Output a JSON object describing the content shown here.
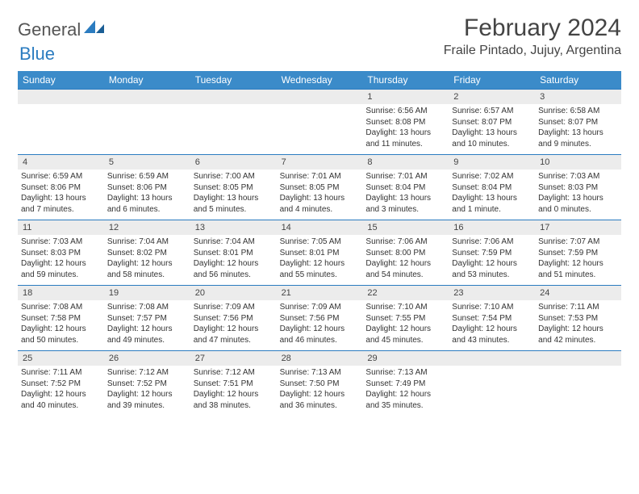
{
  "logo": {
    "part1": "General",
    "part2": "Blue"
  },
  "title": "February 2024",
  "location": "Fraile Pintado, Jujuy, Argentina",
  "header_bg": "#3b8bc9",
  "days_of_week": [
    "Sunday",
    "Monday",
    "Tuesday",
    "Wednesday",
    "Thursday",
    "Friday",
    "Saturday"
  ],
  "weeks": [
    {
      "nums": [
        "",
        "",
        "",
        "",
        "1",
        "2",
        "3"
      ],
      "details": [
        "",
        "",
        "",
        "",
        "Sunrise: 6:56 AM\nSunset: 8:08 PM\nDaylight: 13 hours and 11 minutes.",
        "Sunrise: 6:57 AM\nSunset: 8:07 PM\nDaylight: 13 hours and 10 minutes.",
        "Sunrise: 6:58 AM\nSunset: 8:07 PM\nDaylight: 13 hours and 9 minutes."
      ]
    },
    {
      "nums": [
        "4",
        "5",
        "6",
        "7",
        "8",
        "9",
        "10"
      ],
      "details": [
        "Sunrise: 6:59 AM\nSunset: 8:06 PM\nDaylight: 13 hours and 7 minutes.",
        "Sunrise: 6:59 AM\nSunset: 8:06 PM\nDaylight: 13 hours and 6 minutes.",
        "Sunrise: 7:00 AM\nSunset: 8:05 PM\nDaylight: 13 hours and 5 minutes.",
        "Sunrise: 7:01 AM\nSunset: 8:05 PM\nDaylight: 13 hours and 4 minutes.",
        "Sunrise: 7:01 AM\nSunset: 8:04 PM\nDaylight: 13 hours and 3 minutes.",
        "Sunrise: 7:02 AM\nSunset: 8:04 PM\nDaylight: 13 hours and 1 minute.",
        "Sunrise: 7:03 AM\nSunset: 8:03 PM\nDaylight: 13 hours and 0 minutes."
      ]
    },
    {
      "nums": [
        "11",
        "12",
        "13",
        "14",
        "15",
        "16",
        "17"
      ],
      "details": [
        "Sunrise: 7:03 AM\nSunset: 8:03 PM\nDaylight: 12 hours and 59 minutes.",
        "Sunrise: 7:04 AM\nSunset: 8:02 PM\nDaylight: 12 hours and 58 minutes.",
        "Sunrise: 7:04 AM\nSunset: 8:01 PM\nDaylight: 12 hours and 56 minutes.",
        "Sunrise: 7:05 AM\nSunset: 8:01 PM\nDaylight: 12 hours and 55 minutes.",
        "Sunrise: 7:06 AM\nSunset: 8:00 PM\nDaylight: 12 hours and 54 minutes.",
        "Sunrise: 7:06 AM\nSunset: 7:59 PM\nDaylight: 12 hours and 53 minutes.",
        "Sunrise: 7:07 AM\nSunset: 7:59 PM\nDaylight: 12 hours and 51 minutes."
      ]
    },
    {
      "nums": [
        "18",
        "19",
        "20",
        "21",
        "22",
        "23",
        "24"
      ],
      "details": [
        "Sunrise: 7:08 AM\nSunset: 7:58 PM\nDaylight: 12 hours and 50 minutes.",
        "Sunrise: 7:08 AM\nSunset: 7:57 PM\nDaylight: 12 hours and 49 minutes.",
        "Sunrise: 7:09 AM\nSunset: 7:56 PM\nDaylight: 12 hours and 47 minutes.",
        "Sunrise: 7:09 AM\nSunset: 7:56 PM\nDaylight: 12 hours and 46 minutes.",
        "Sunrise: 7:10 AM\nSunset: 7:55 PM\nDaylight: 12 hours and 45 minutes.",
        "Sunrise: 7:10 AM\nSunset: 7:54 PM\nDaylight: 12 hours and 43 minutes.",
        "Sunrise: 7:11 AM\nSunset: 7:53 PM\nDaylight: 12 hours and 42 minutes."
      ]
    },
    {
      "nums": [
        "25",
        "26",
        "27",
        "28",
        "29",
        "",
        ""
      ],
      "details": [
        "Sunrise: 7:11 AM\nSunset: 7:52 PM\nDaylight: 12 hours and 40 minutes.",
        "Sunrise: 7:12 AM\nSunset: 7:52 PM\nDaylight: 12 hours and 39 minutes.",
        "Sunrise: 7:12 AM\nSunset: 7:51 PM\nDaylight: 12 hours and 38 minutes.",
        "Sunrise: 7:13 AM\nSunset: 7:50 PM\nDaylight: 12 hours and 36 minutes.",
        "Sunrise: 7:13 AM\nSunset: 7:49 PM\nDaylight: 12 hours and 35 minutes.",
        "",
        ""
      ]
    }
  ]
}
